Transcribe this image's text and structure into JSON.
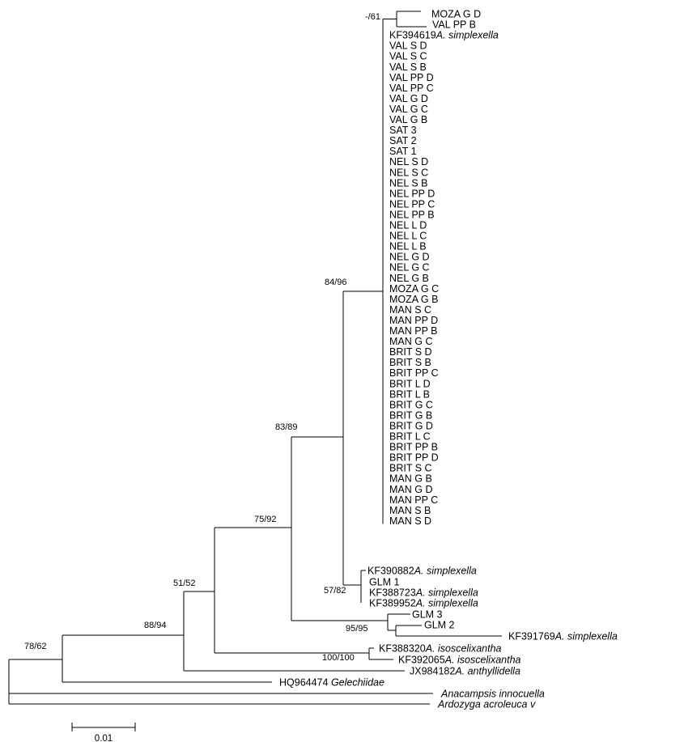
{
  "tree": {
    "taxa": [
      {
        "id": "t0",
        "code": "MOZA G D",
        "species": ""
      },
      {
        "id": "t1",
        "code": "VAL PP B",
        "species": ""
      },
      {
        "id": "t2",
        "code": "KF394619",
        "species": "A. simplexella"
      },
      {
        "id": "t3",
        "code": "VAL S D",
        "species": ""
      },
      {
        "id": "t4",
        "code": "VAL S C",
        "species": ""
      },
      {
        "id": "t5",
        "code": "VAL S B",
        "species": ""
      },
      {
        "id": "t6",
        "code": "VAL PP D",
        "species": ""
      },
      {
        "id": "t7",
        "code": "VAL PP C",
        "species": ""
      },
      {
        "id": "t8",
        "code": "VAL G D",
        "species": ""
      },
      {
        "id": "t9",
        "code": "VAL G C",
        "species": ""
      },
      {
        "id": "t10",
        "code": "VAL G B",
        "species": ""
      },
      {
        "id": "t11",
        "code": "SAT 3",
        "species": ""
      },
      {
        "id": "t12",
        "code": "SAT 2",
        "species": ""
      },
      {
        "id": "t13",
        "code": "SAT 1",
        "species": ""
      },
      {
        "id": "t14",
        "code": "NEL S D",
        "species": ""
      },
      {
        "id": "t15",
        "code": "NEL S C",
        "species": ""
      },
      {
        "id": "t16",
        "code": "NEL S B",
        "species": ""
      },
      {
        "id": "t17",
        "code": "NEL PP D",
        "species": ""
      },
      {
        "id": "t18",
        "code": "NEL PP C",
        "species": ""
      },
      {
        "id": "t19",
        "code": "NEL PP B",
        "species": ""
      },
      {
        "id": "t20",
        "code": "NEL L D",
        "species": ""
      },
      {
        "id": "t21",
        "code": "NEL L C",
        "species": ""
      },
      {
        "id": "t22",
        "code": "NEL L B",
        "species": ""
      },
      {
        "id": "t23",
        "code": "NEL G D",
        "species": ""
      },
      {
        "id": "t24",
        "code": "NEL G C",
        "species": ""
      },
      {
        "id": "t25",
        "code": "NEL G B",
        "species": ""
      },
      {
        "id": "t26",
        "code": "MOZA G C",
        "species": ""
      },
      {
        "id": "t27",
        "code": "MOZA G B",
        "species": ""
      },
      {
        "id": "t28",
        "code": "MAN S C",
        "species": ""
      },
      {
        "id": "t29",
        "code": "MAN PP D",
        "species": ""
      },
      {
        "id": "t30",
        "code": "MAN PP B",
        "species": ""
      },
      {
        "id": "t31",
        "code": "MAN G C",
        "species": ""
      },
      {
        "id": "t32",
        "code": "BRIT S D",
        "species": ""
      },
      {
        "id": "t33",
        "code": "BRIT S B",
        "species": ""
      },
      {
        "id": "t34",
        "code": "BRIT PP C",
        "species": ""
      },
      {
        "id": "t35",
        "code": "BRIT L D",
        "species": ""
      },
      {
        "id": "t36",
        "code": "BRIT L B",
        "species": ""
      },
      {
        "id": "t37",
        "code": "BRIT G C",
        "species": ""
      },
      {
        "id": "t38",
        "code": "BRIT G B",
        "species": ""
      },
      {
        "id": "t39",
        "code": "BRIT G D",
        "species": ""
      },
      {
        "id": "t40",
        "code": "BRIT L C",
        "species": ""
      },
      {
        "id": "t41",
        "code": "BRIT PP B",
        "species": ""
      },
      {
        "id": "t42",
        "code": "BRIT PP D",
        "species": ""
      },
      {
        "id": "t43",
        "code": "BRIT S C",
        "species": ""
      },
      {
        "id": "t44",
        "code": "MAN G B",
        "species": ""
      },
      {
        "id": "t45",
        "code": "MAN G D",
        "species": ""
      },
      {
        "id": "t46",
        "code": "MAN PP C",
        "species": ""
      },
      {
        "id": "t47",
        "code": "MAN S B",
        "species": ""
      },
      {
        "id": "t48",
        "code": "MAN S D",
        "species": ""
      },
      {
        "id": "t49",
        "code": "KF390882",
        "species": "A. simplexella"
      },
      {
        "id": "t50",
        "code": "GLM 1",
        "species": ""
      },
      {
        "id": "t51",
        "code": "KF388723",
        "species": "A. simplexella"
      },
      {
        "id": "t52",
        "code": "KF389952",
        "species": "A. simplexella"
      },
      {
        "id": "t53",
        "code": "GLM 3",
        "species": ""
      },
      {
        "id": "t54",
        "code": "GLM 2",
        "species": ""
      },
      {
        "id": "t55",
        "code": "KF391769",
        "species": "A. simplexella"
      },
      {
        "id": "t56",
        "code": "KF388320",
        "species": "A. isoscelixantha"
      },
      {
        "id": "t57",
        "code": "KF392065",
        "species": "A. isoscelixantha"
      },
      {
        "id": "t58",
        "code": "JX984182",
        "species": "A. anthyllidella"
      },
      {
        "id": "t59",
        "code": "HQ964474 ",
        "species": "Gelechiidae"
      },
      {
        "id": "t60",
        "code": "",
        "species": "Anacampsis innocuella"
      },
      {
        "id": "t61",
        "code": "",
        "species": "Ardozyga acroleuca v"
      }
    ],
    "support_values": [
      {
        "node": "n_moza_val",
        "label": "-/61"
      },
      {
        "node": "n_simplexella_main",
        "label": "84/96"
      },
      {
        "node": "n_glm1_group",
        "label": "57/82"
      },
      {
        "node": "n_simplexella_all",
        "label": "83/89"
      },
      {
        "node": "n_glm23",
        "label": "95/95"
      },
      {
        "node": "n_with_isoscelixantha",
        "label": "75/92"
      },
      {
        "node": "n_isoscelixantha",
        "label": "100/100"
      },
      {
        "node": "n_with_anthyllidella",
        "label": "51/52"
      },
      {
        "node": "n_ingroup",
        "label": "88/94"
      },
      {
        "node": "n_with_gelechiidae",
        "label": "78/62"
      }
    ],
    "scale_bar": {
      "value": 0.01,
      "label": "0.01"
    }
  }
}
